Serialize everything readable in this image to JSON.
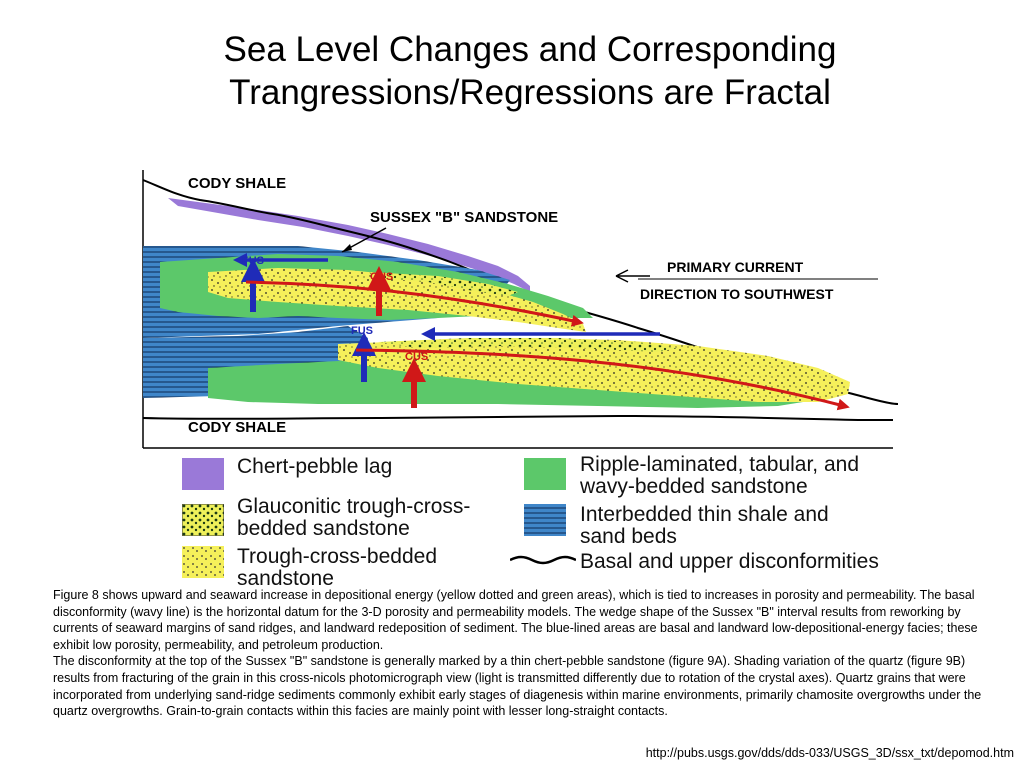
{
  "slide": {
    "title_line1": "Sea Level Changes and Corresponding",
    "title_line2": "Trangressions/Regressions are Fractal"
  },
  "diagram": {
    "label_top_shale": "CODY SHALE",
    "label_bottom_shale": "CODY SHALE",
    "label_sandstone": "SUSSEX \"B\" SANDSTONE",
    "current_line1": "PRIMARY CURRENT",
    "current_line2": "DIRECTION TO SOUTHWEST",
    "marker_fus_1": "FUS",
    "marker_fus_2": "FUS",
    "marker_cus_1": "CUS",
    "marker_cus_2": "CUS"
  },
  "legend": {
    "chert": "Chert-pebble lag",
    "glauconitic_line1": "Glauconitic trough-cross-",
    "glauconitic_line2": "bedded sandstone",
    "trough_line1": "Trough-cross-bedded",
    "trough_line2": "sandstone",
    "ripple_line1": "Ripple-laminated, tabular, and",
    "ripple_line2": "wavy-bedded sandstone",
    "interbedded_line1": "Interbedded thin shale and",
    "interbedded_line2": "sand beds",
    "disconformity": "Basal and upper disconformities"
  },
  "caption": {
    "paragraph1": "Figure 8 shows upward and seaward increase in depositional energy (yellow dotted and green areas), which is tied to increases in porosity and permeability. The basal disconformity (wavy line) is the horizontal datum for the 3-D porosity and permeability models. The wedge shape of the Sussex \"B\" interval results from reworking by currents of seaward margins of sand ridges, and landward redeposition of sediment. The blue-lined areas are basal and landward low-depositional-energy facies; these exhibit low porosity, permeability, and petroleum production.",
    "paragraph2": "The disconformity at the top of the Sussex \"B\" sandstone is generally marked by a thin chert-pebble sandstone (figure 9A). Shading variation of the quartz (figure 9B) results from fracturing of the grain in this cross-nicols photomicrograph view (light is transmitted differently due to rotation of the crystal axes). Quartz grains that were incorporated from underlying sand-ridge sediments commonly exhibit early stages of diagenesis within marine environments, primarily chamosite overgrowths under the quartz overgrowths. Grain-to-grain contacts within this facies are mainly point with lesser long-straight contacts."
  },
  "source_url": "http://pubs.usgs.gov/dds/dds-033/USGS_3D/ssx_txt/depomod.htm",
  "colors": {
    "chert": "#9a79d8",
    "ripple": "#5cc86a",
    "sand": "#f5f05a",
    "interbedded": "#3f86c9",
    "fus_arrow": "#1f2bb8",
    "cus_arrow": "#d01818"
  }
}
